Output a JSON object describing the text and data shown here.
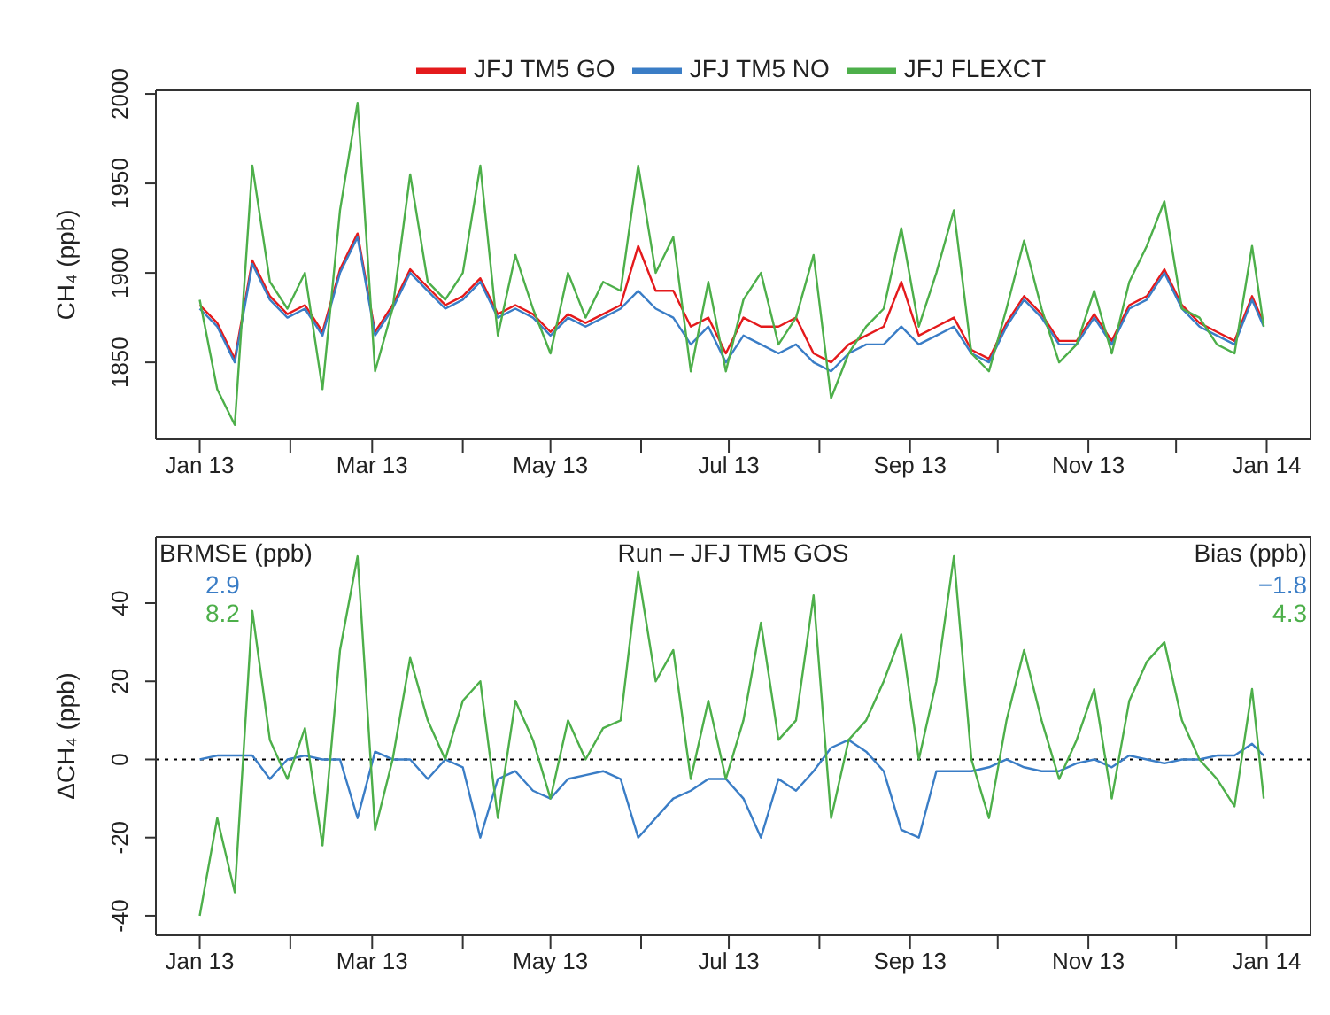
{
  "chart_data": [
    {
      "type": "line",
      "ylabel": "CH₄ (ppb)",
      "legend": "top",
      "x": [
        "2013-01-01",
        "2013-01-07",
        "2013-01-13",
        "2013-01-19",
        "2013-01-25",
        "2013-01-31",
        "2013-02-06",
        "2013-02-12",
        "2013-02-18",
        "2013-02-24",
        "2013-03-02",
        "2013-03-08",
        "2013-03-14",
        "2013-03-20",
        "2013-03-26",
        "2013-04-01",
        "2013-04-07",
        "2013-04-13",
        "2013-04-19",
        "2013-04-25",
        "2013-05-01",
        "2013-05-07",
        "2013-05-13",
        "2013-05-19",
        "2013-05-25",
        "2013-05-31",
        "2013-06-06",
        "2013-06-12",
        "2013-06-18",
        "2013-06-24",
        "2013-06-30",
        "2013-07-06",
        "2013-07-12",
        "2013-07-18",
        "2013-07-24",
        "2013-07-30",
        "2013-08-05",
        "2013-08-11",
        "2013-08-17",
        "2013-08-23",
        "2013-08-29",
        "2013-09-04",
        "2013-09-10",
        "2013-09-16",
        "2013-09-22",
        "2013-09-28",
        "2013-10-04",
        "2013-10-10",
        "2013-10-16",
        "2013-10-22",
        "2013-10-28",
        "2013-11-03",
        "2013-11-09",
        "2013-11-15",
        "2013-11-21",
        "2013-11-27",
        "2013-12-03",
        "2013-12-09",
        "2013-12-15",
        "2013-12-21",
        "2013-12-27",
        "2013-12-31"
      ],
      "series": [
        {
          "name": "JFJ TM5 GO",
          "color": "#e41a1c",
          "values": [
            1882,
            1872,
            1852,
            1907,
            1887,
            1877,
            1882,
            1867,
            1902,
            1922,
            1867,
            1882,
            1902,
            1892,
            1882,
            1887,
            1897,
            1877,
            1882,
            1877,
            1867,
            1877,
            1872,
            1877,
            1882,
            1915,
            1890,
            1890,
            1870,
            1875,
            1855,
            1875,
            1870,
            1870,
            1875,
            1855,
            1850,
            1860,
            1865,
            1870,
            1895,
            1865,
            1870,
            1875,
            1857,
            1852,
            1872,
            1887,
            1877,
            1862,
            1862,
            1877,
            1862,
            1882,
            1887,
            1902,
            1882,
            1872,
            1867,
            1862,
            1887,
            1872
          ]
        },
        {
          "name": "JFJ TM5 NO",
          "color": "#3a7dc6",
          "values": [
            1880,
            1870,
            1850,
            1905,
            1885,
            1875,
            1880,
            1865,
            1900,
            1920,
            1865,
            1880,
            1900,
            1890,
            1880,
            1885,
            1895,
            1875,
            1880,
            1875,
            1865,
            1875,
            1870,
            1875,
            1880,
            1890,
            1880,
            1875,
            1860,
            1870,
            1850,
            1865,
            1860,
            1855,
            1860,
            1850,
            1845,
            1855,
            1860,
            1860,
            1870,
            1860,
            1865,
            1870,
            1855,
            1850,
            1870,
            1885,
            1875,
            1860,
            1860,
            1875,
            1860,
            1880,
            1885,
            1900,
            1880,
            1870,
            1865,
            1860,
            1885,
            1870
          ]
        },
        {
          "name": "JFJ FLEXCT",
          "color": "#4daf4a",
          "values": [
            1885,
            1835,
            1815,
            1960,
            1895,
            1880,
            1900,
            1835,
            1935,
            1995,
            1845,
            1880,
            1955,
            1895,
            1885,
            1900,
            1960,
            1865,
            1910,
            1880,
            1855,
            1900,
            1875,
            1895,
            1890,
            1960,
            1900,
            1920,
            1845,
            1895,
            1845,
            1885,
            1900,
            1860,
            1875,
            1910,
            1830,
            1855,
            1870,
            1880,
            1925,
            1870,
            1900,
            1935,
            1855,
            1845,
            1880,
            1918,
            1880,
            1850,
            1860,
            1890,
            1855,
            1895,
            1915,
            1940,
            1880,
            1875,
            1860,
            1855,
            1915,
            1870
          ]
        }
      ],
      "xlim": [
        "2012-12-17",
        "2014-01-16"
      ],
      "xticks": [
        {
          "value": "2013-01",
          "label": "Jan 13"
        },
        {
          "value": "2013-02",
          "label": null
        },
        {
          "value": "2013-03",
          "label": "Mar 13"
        },
        {
          "value": "2013-04",
          "label": null
        },
        {
          "value": "2013-05",
          "label": "May 13"
        },
        {
          "value": "2013-06",
          "label": null
        },
        {
          "value": "2013-07",
          "label": "Jul 13"
        },
        {
          "value": "2013-08",
          "label": null
        },
        {
          "value": "2013-09",
          "label": "Sep 13"
        },
        {
          "value": "2013-10",
          "label": null
        },
        {
          "value": "2013-11",
          "label": "Nov 13"
        },
        {
          "value": "2013-12",
          "label": null
        },
        {
          "value": "2014-01",
          "label": "Jan 14"
        }
      ],
      "ylim": [
        1807,
        2002
      ],
      "yticks": [
        1850,
        1900,
        1950,
        2000
      ]
    },
    {
      "type": "line",
      "ylabel": "ΔCH₄ (ppb)",
      "annotations": [
        "BRMSE (ppb)",
        "2.9",
        "8.2",
        "Run – JFJ TM5 GOS",
        "Bias (ppb)",
        "−1.8",
        "4.3"
      ],
      "x": [
        "2013-01-01",
        "2013-01-07",
        "2013-01-13",
        "2013-01-19",
        "2013-01-25",
        "2013-01-31",
        "2013-02-06",
        "2013-02-12",
        "2013-02-18",
        "2013-02-24",
        "2013-03-02",
        "2013-03-08",
        "2013-03-14",
        "2013-03-20",
        "2013-03-26",
        "2013-04-01",
        "2013-04-07",
        "2013-04-13",
        "2013-04-19",
        "2013-04-25",
        "2013-05-01",
        "2013-05-07",
        "2013-05-13",
        "2013-05-19",
        "2013-05-25",
        "2013-05-31",
        "2013-06-06",
        "2013-06-12",
        "2013-06-18",
        "2013-06-24",
        "2013-06-30",
        "2013-07-06",
        "2013-07-12",
        "2013-07-18",
        "2013-07-24",
        "2013-07-30",
        "2013-08-05",
        "2013-08-11",
        "2013-08-17",
        "2013-08-23",
        "2013-08-29",
        "2013-09-04",
        "2013-09-10",
        "2013-09-16",
        "2013-09-22",
        "2013-09-28",
        "2013-10-04",
        "2013-10-10",
        "2013-10-16",
        "2013-10-22",
        "2013-10-28",
        "2013-11-03",
        "2013-11-09",
        "2013-11-15",
        "2013-11-21",
        "2013-11-27",
        "2013-12-03",
        "2013-12-09",
        "2013-12-15",
        "2013-12-21",
        "2013-12-27",
        "2013-12-31"
      ],
      "series": [
        {
          "color": "#3a7dc6",
          "values": [
            0,
            1,
            1,
            1,
            -5,
            0,
            1,
            0,
            0,
            -15,
            2,
            0,
            0,
            -5,
            0,
            -2,
            -20,
            -5,
            -3,
            -8,
            -10,
            -5,
            -4,
            -3,
            -5,
            -20,
            -15,
            -10,
            -8,
            -5,
            -5,
            -10,
            -20,
            -5,
            -8,
            -3,
            3,
            5,
            2,
            -3,
            -18,
            -20,
            -3,
            -3,
            -3,
            -2,
            0,
            -2,
            -3,
            -3,
            -1,
            0,
            -2,
            1,
            0,
            -1,
            0,
            0,
            1,
            1,
            4,
            1
          ]
        },
        {
          "color": "#4daf4a",
          "values": [
            -40,
            -15,
            -34,
            38,
            5,
            -5,
            8,
            -22,
            28,
            52,
            -18,
            0,
            26,
            10,
            0,
            15,
            20,
            -15,
            15,
            5,
            -10,
            10,
            0,
            8,
            10,
            48,
            20,
            28,
            -5,
            15,
            -5,
            10,
            35,
            5,
            10,
            42,
            -15,
            5,
            10,
            20,
            32,
            0,
            20,
            52,
            0,
            -15,
            10,
            28,
            10,
            -5,
            5,
            18,
            -10,
            15,
            25,
            30,
            10,
            0,
            -5,
            -12,
            18,
            -10
          ]
        }
      ],
      "xlim": [
        "2012-12-17",
        "2014-01-16"
      ],
      "xticks": [
        {
          "value": "2013-01",
          "label": "Jan 13"
        },
        {
          "value": "2013-02",
          "label": null
        },
        {
          "value": "2013-03",
          "label": "Mar 13"
        },
        {
          "value": "2013-04",
          "label": null
        },
        {
          "value": "2013-05",
          "label": "May 13"
        },
        {
          "value": "2013-06",
          "label": null
        },
        {
          "value": "2013-07",
          "label": "Jul 13"
        },
        {
          "value": "2013-08",
          "label": null
        },
        {
          "value": "2013-09",
          "label": "Sep 13"
        },
        {
          "value": "2013-10",
          "label": null
        },
        {
          "value": "2013-11",
          "label": "Nov 13"
        },
        {
          "value": "2013-12",
          "label": null
        },
        {
          "value": "2014-01",
          "label": "Jan 14"
        }
      ],
      "ylim": [
        -45,
        57
      ],
      "yticks": [
        -40,
        -20,
        0,
        20,
        40
      ],
      "ref_lines": [
        {
          "axis": "y",
          "value": 0,
          "color": "#000000",
          "line_style": "dotted"
        }
      ]
    }
  ]
}
